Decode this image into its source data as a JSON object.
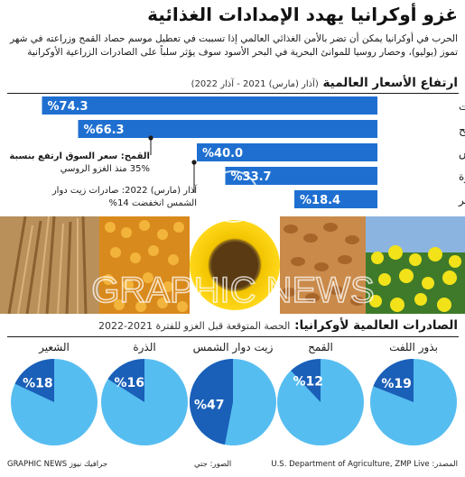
{
  "header": {
    "title": "غزو أوكرانيا يهدد الإمدادات الغذائية",
    "intro_line1": "الحرب في أوكرانيا يمكن أن تضر بالأمن الغذائي العالمي إذا تسببت في تعطيل موسم حصاد القمح وزراعته في شهر",
    "intro_line2": "تموز (يوليو)، وحصار روسيا للموانئ البحرية في البحر الأسود سوف يؤثر سلباً على الصادرات الزراعية الأوكرانية"
  },
  "prices_section": {
    "title": "ارتفاع الأسعار العالمية",
    "subtitle": "(آذار (مارس) 2021 - آذار 2022)"
  },
  "notes": {
    "wheat_note_line1": "القمح: سعر السوق ارتفع بنسبة",
    "wheat_note_line2": "35% منذ الغزو الروسي",
    "march_note_line1": "آذار (مارس) 2022: صادرات زيت دوار",
    "march_note_line2": "الشمس انخفضت 14%"
  },
  "exports_section": {
    "title": "الصادرات العالمية لأوكرانيا:",
    "subtitle": "الحصة المتوقعة قبل الغزو للفترة 2021-2022"
  },
  "footer": {
    "source": "المصدر: U.S. Department of Agriculture, ZMP Live",
    "photos": "الصور: جتي",
    "credit": "GRAPHIC NEWS جرافيك نيوز"
  },
  "colors": {
    "bar_blue": "#1f6fd1",
    "pie_light": "#56bdf0",
    "pie_dark": "#1a5fb8"
  },
  "chart_data": [
    {
      "type": "bar",
      "title": "ارتفاع الأسعار العالمية",
      "subtitle": "(آذار (مارس) 2021 - آذار 2022)",
      "categories": [
        "بذور اللفت",
        "القمح",
        "زيت دوار الشمس",
        "الذرة",
        "الشعير"
      ],
      "values": [
        74.3,
        66.3,
        40.0,
        33.7,
        18.4
      ],
      "value_labels": [
        "%74.3",
        "%66.3",
        "%40.0",
        "%33.7",
        "%18.4"
      ],
      "xlim": [
        0,
        80
      ]
    },
    {
      "type": "pie",
      "title": "الصادرات العالمية لأوكرانيا:",
      "subtitle": "الحصة المتوقعة قبل الغزو للفترة 2021-2022",
      "categories": [
        "بذور اللفت",
        "القمح",
        "زيت دوار الشمس",
        "الذرة",
        "الشعير"
      ],
      "values": [
        19,
        12,
        47,
        16,
        18
      ],
      "value_labels": [
        "%19",
        "%12",
        "%47",
        "%16",
        "%18"
      ]
    }
  ]
}
